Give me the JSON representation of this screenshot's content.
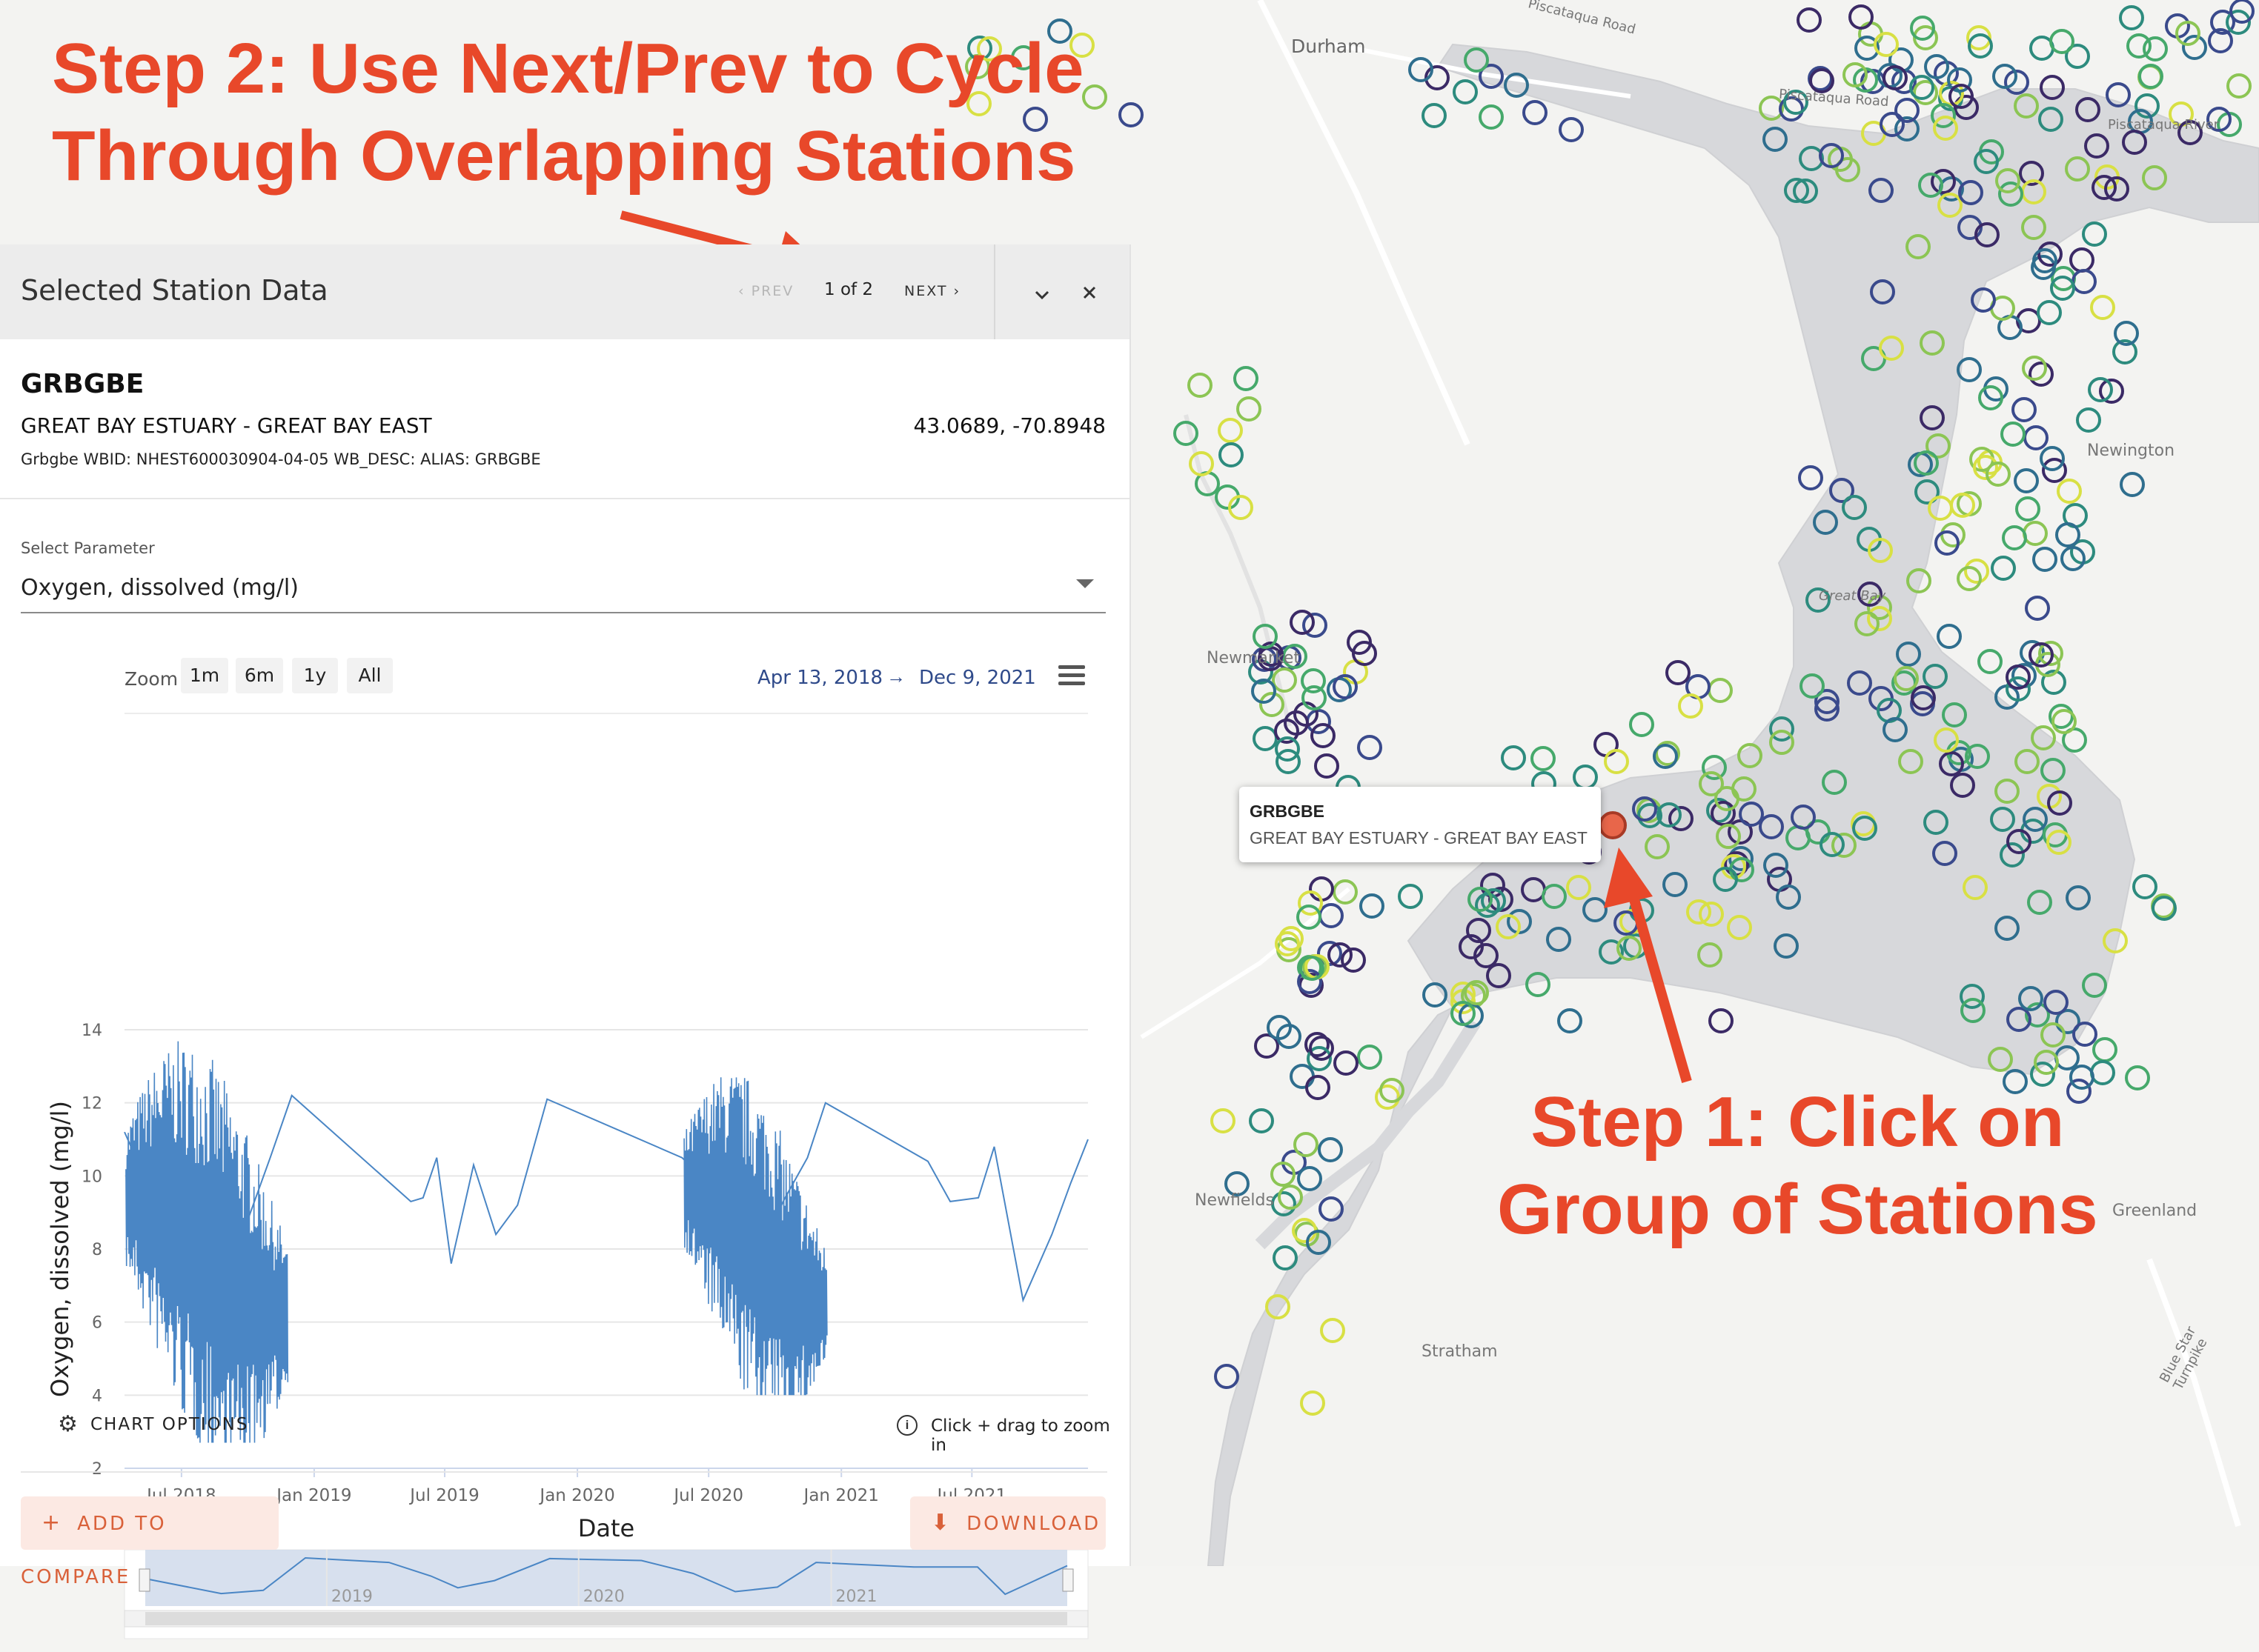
{
  "annotations": {
    "step2_line1": "Step 2: Use Next/Prev to Cycle",
    "step2_line2": "Through Overlapping Stations",
    "step1_line1": "Step 1: Click on",
    "step1_line2": "Group of Stations",
    "color": "#e8482a"
  },
  "panel": {
    "title": "Selected Station Data",
    "prev_label": "‹ PREV",
    "count": "1 of 2",
    "next_label": "NEXT ›",
    "collapse_icon": "chevron-down-icon",
    "close_icon": "close-icon"
  },
  "station": {
    "id": "GRBGBE",
    "name": "GREAT BAY ESTUARY - GREAT BAY EAST",
    "coords": "43.0689, -70.8948",
    "desc": "Grbgbe WBID: NHEST600030904-04-05 WB_DESC: ALIAS: GRBGBE"
  },
  "parameter": {
    "label": "Select Parameter",
    "value": "Oxygen, dissolved (mg/l)"
  },
  "zoom": {
    "label": "Zoom",
    "buttons": [
      "1m",
      "6m",
      "1y",
      "All"
    ],
    "range_from": "Apr 13, 2018",
    "range_arrow": "→",
    "range_to": "Dec 9, 2021"
  },
  "chart_data": {
    "type": "line",
    "xlabel": "Date",
    "ylabel": "Oxygen, dissolved (mg/l)",
    "ylim": [
      2,
      14
    ],
    "yticks": [
      2,
      4,
      6,
      8,
      10,
      12,
      14
    ],
    "xticks": [
      "Jul 2018",
      "Jan 2019",
      "Jul 2019",
      "Jan 2020",
      "Jul 2020",
      "Jan 2021",
      "Jul 2021"
    ],
    "xlim": [
      "2018-04-13",
      "2021-12-09"
    ],
    "color": "#4a86c5",
    "series": [
      {
        "points": [
          [
            "2018-04-13",
            11.2
          ],
          [
            "2018-05-01",
            10.4
          ],
          [
            "2018-06-01",
            9.0
          ],
          [
            "2018-07-01",
            8.2
          ],
          [
            "2018-08-01",
            7.8
          ],
          [
            "2018-09-01",
            8.1
          ],
          [
            "2018-10-01",
            8.8
          ],
          [
            "2018-11-01",
            10.5
          ],
          [
            "2018-12-01",
            12.2
          ],
          [
            "2019-05-15",
            9.3
          ],
          [
            "2019-06-01",
            9.4
          ],
          [
            "2019-06-20",
            10.5
          ],
          [
            "2019-07-10",
            7.6
          ],
          [
            "2019-08-10",
            10.3
          ],
          [
            "2019-09-10",
            8.4
          ],
          [
            "2019-10-10",
            9.2
          ],
          [
            "2019-11-20",
            12.1
          ],
          [
            "2020-05-25",
            10.5
          ],
          [
            "2020-06-15",
            10.1
          ],
          [
            "2020-07-15",
            7.8
          ],
          [
            "2020-08-15",
            7.5
          ],
          [
            "2020-09-15",
            8.2
          ],
          [
            "2020-10-15",
            9.4
          ],
          [
            "2020-11-15",
            10.5
          ],
          [
            "2020-12-10",
            12.0
          ],
          [
            "2021-05-01",
            10.4
          ],
          [
            "2021-06-01",
            9.3
          ],
          [
            "2021-07-10",
            9.4
          ],
          [
            "2021-08-01",
            10.8
          ],
          [
            "2021-09-10",
            6.6
          ],
          [
            "2021-10-20",
            8.4
          ],
          [
            "2021-11-15",
            9.8
          ],
          [
            "2021-12-09",
            11.0
          ]
        ],
        "dense_periods": [
          {
            "from": "2018-04-15",
            "to": "2018-11-25",
            "min": 2.7,
            "max": 13.9
          },
          {
            "from": "2020-05-28",
            "to": "2020-12-12",
            "min": 4.0,
            "max": 13.0
          }
        ]
      }
    ],
    "navigator_labels": [
      "2019",
      "2020",
      "2021"
    ]
  },
  "chart_options_label": "CHART OPTIONS",
  "hint": "Click + drag to zoom in",
  "buttons": {
    "compare": "ADD TO COMPARE",
    "download": "DOWNLOAD",
    "accent": "#d9613a"
  },
  "tooltip": {
    "id": "GRBGBE",
    "name": "GREAT BAY ESTUARY - GREAT BAY EAST"
  },
  "map_labels": {
    "durham": "Durham",
    "piscataqua_road": "Piscataqua Road",
    "piscataqua_road_2": "Piscataqua Road",
    "piscataqua_river": "Piscataqua River",
    "newington": "Newington",
    "great_bay": "Great Bay",
    "newmarket": "Newmarket",
    "newfields": "Newfields",
    "stratham": "Stratham",
    "greenland": "Greenland",
    "turnpike": "Blue Star Turnpike"
  }
}
